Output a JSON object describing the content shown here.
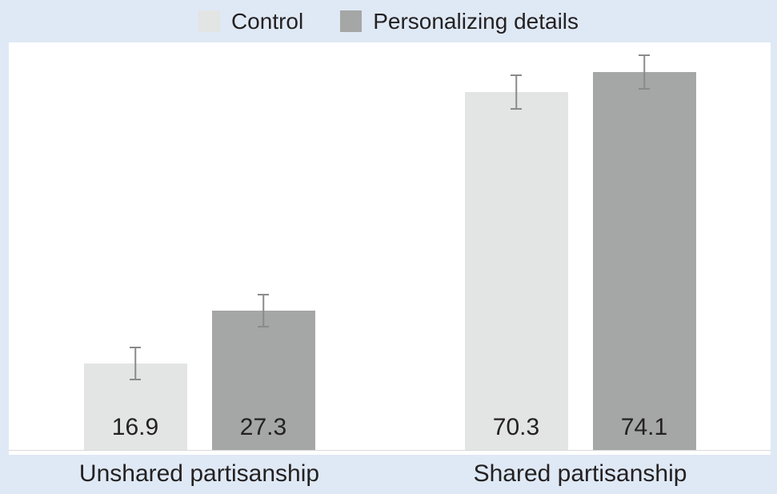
{
  "colors": {
    "page_background": "#dfe9f5",
    "plot_background": "#ffffff",
    "baseline": "#d9d9d9",
    "error_bar": "#8a8a8a",
    "text": "#242122"
  },
  "chart_data": {
    "type": "bar",
    "title": "",
    "xlabel": "",
    "ylabel": "",
    "categories": [
      "Unshared partisanship",
      "Shared partisanship"
    ],
    "series": [
      {
        "name": "Control",
        "color": "#e3e4e4",
        "values": [
          16.9,
          70.3
        ],
        "value_labels": [
          "16.9",
          "70.3"
        ],
        "errors": [
          3.3,
          3.5
        ]
      },
      {
        "name": "Personalizing details",
        "color": "#a5a6a6",
        "values": [
          27.3,
          74.1
        ],
        "value_labels": [
          "27.3",
          "74.1"
        ],
        "errors": [
          3.3,
          3.4
        ]
      }
    ],
    "ylim": [
      0,
      79.2
    ],
    "legend_position": "top",
    "axes_hidden": true,
    "grid": false,
    "value_labels_shown": true,
    "error_bars_shown": true
  }
}
